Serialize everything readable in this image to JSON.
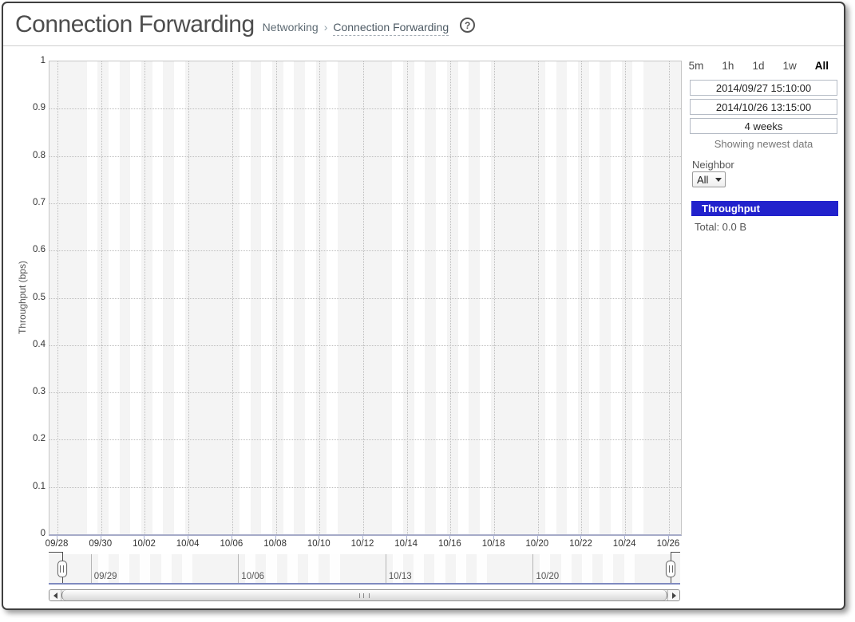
{
  "header": {
    "title": "Connection Forwarding",
    "breadcrumb": {
      "parent": "Networking",
      "separator": "›",
      "current": "Connection Forwarding"
    },
    "help_glyph": "?"
  },
  "controls": {
    "ranges": [
      {
        "label": "5m",
        "active": false
      },
      {
        "label": "1h",
        "active": false
      },
      {
        "label": "1d",
        "active": false
      },
      {
        "label": "1w",
        "active": false
      },
      {
        "label": "All",
        "active": true
      }
    ],
    "start_time": "2014/09/27 15:10:00",
    "end_time": "2014/10/26 13:15:00",
    "duration": "4 weeks",
    "status": "Showing newest data",
    "neighbor_label": "Neighbor",
    "neighbor_value": "All"
  },
  "legend": {
    "series_label": "Throughput",
    "color": "#2222cc",
    "total": "Total: 0.0 B"
  },
  "chart_data": {
    "type": "line",
    "title": "",
    "xlabel": "",
    "ylabel": "Throughput (bps)",
    "ylim": [
      0,
      1
    ],
    "grid": true,
    "x_range": [
      "2014-09-27T15:10:00",
      "2014-10-26T13:15:00"
    ],
    "yticks": [
      {
        "label": "1",
        "value": 1.0
      },
      {
        "label": "0.9",
        "value": 0.9
      },
      {
        "label": "0.8",
        "value": 0.8
      },
      {
        "label": "0.7",
        "value": 0.7
      },
      {
        "label": "0.6",
        "value": 0.6
      },
      {
        "label": "0.5",
        "value": 0.5
      },
      {
        "label": "0.4",
        "value": 0.4
      },
      {
        "label": "0.3",
        "value": 0.3
      },
      {
        "label": "0.2",
        "value": 0.2
      },
      {
        "label": "0.1",
        "value": 0.1
      },
      {
        "label": "0",
        "value": 0.0
      }
    ],
    "xticks": [
      {
        "label": "09/28",
        "t": "2014-09-28T00:00:00"
      },
      {
        "label": "09/30",
        "t": "2014-09-30T00:00:00"
      },
      {
        "label": "10/02",
        "t": "2014-10-02T00:00:00"
      },
      {
        "label": "10/04",
        "t": "2014-10-04T00:00:00"
      },
      {
        "label": "10/06",
        "t": "2014-10-06T00:00:00"
      },
      {
        "label": "10/08",
        "t": "2014-10-08T00:00:00"
      },
      {
        "label": "10/10",
        "t": "2014-10-10T00:00:00"
      },
      {
        "label": "10/12",
        "t": "2014-10-12T00:00:00"
      },
      {
        "label": "10/14",
        "t": "2014-10-14T00:00:00"
      },
      {
        "label": "10/16",
        "t": "2014-10-16T00:00:00"
      },
      {
        "label": "10/18",
        "t": "2014-10-18T00:00:00"
      },
      {
        "label": "10/20",
        "t": "2014-10-20T00:00:00"
      },
      {
        "label": "10/22",
        "t": "2014-10-22T00:00:00"
      },
      {
        "label": "10/24",
        "t": "2014-10-24T00:00:00"
      },
      {
        "label": "10/26",
        "t": "2014-10-26T00:00:00"
      }
    ],
    "series": [
      {
        "name": "Throughput",
        "color": "#2222cc",
        "values": [],
        "total": "0.0 B"
      }
    ],
    "shading": {
      "plot_bg": "#f4f4f4",
      "stripe_color": "#ffffff",
      "weekday_stripe_hours": [
        8,
        20
      ],
      "weekends_shaded": true
    }
  },
  "timeline": {
    "range": [
      "2014-09-27T00:00:00",
      "2014-10-27T00:00:00"
    ],
    "selection": [
      "2014-09-27T15:10:00",
      "2014-10-26T13:15:00"
    ],
    "week_labels": [
      {
        "label": "09/29",
        "t": "2014-09-29T00:00:00"
      },
      {
        "label": "10/06",
        "t": "2014-10-06T00:00:00"
      },
      {
        "label": "10/13",
        "t": "2014-10-13T00:00:00"
      },
      {
        "label": "10/20",
        "t": "2014-10-20T00:00:00"
      }
    ]
  }
}
